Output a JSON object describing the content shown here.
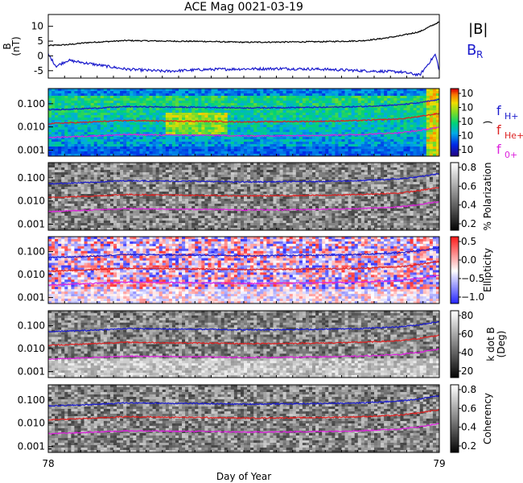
{
  "chart_data": {
    "title": "ACE Mag 0021-03-19",
    "xlabel": "Day of Year",
    "x_ticks": [
      "78",
      "79"
    ],
    "xlim": [
      78,
      79
    ],
    "panels": [
      {
        "type": "line",
        "ylabel_main": "B",
        "ylabel_unit": "(nT)",
        "y_ticks": [
          "10",
          "5",
          "0",
          "-5"
        ],
        "y_tick_values": [
          10,
          5,
          0,
          -5
        ],
        "ylim": [
          -7.5,
          14
        ],
        "series": [
          {
            "name": "|B|",
            "color": "#000000",
            "x": [
              78.0,
              78.05,
              78.1,
              78.2,
              78.3,
              78.4,
              78.5,
              78.6,
              78.7,
              78.8,
              78.85,
              78.9,
              78.95,
              79.0
            ],
            "y": [
              3.5,
              3.8,
              4.5,
              5.2,
              5.0,
              4.9,
              4.6,
              4.7,
              4.8,
              5.1,
              5.8,
              6.8,
              8.2,
              11.5
            ]
          },
          {
            "name": "Bʀ",
            "label_main": "B",
            "label_sub": "R",
            "color": "#1a1acc",
            "x": [
              78.0,
              78.02,
              78.05,
              78.1,
              78.2,
              78.3,
              78.4,
              78.5,
              78.6,
              78.7,
              78.8,
              78.9,
              78.95,
              78.99,
              79.0
            ],
            "y": [
              0.5,
              -3.5,
              -1.5,
              -2.5,
              -4.5,
              -5.2,
              -4.6,
              -4.4,
              -4.3,
              -4.5,
              -5.0,
              -5.4,
              -6.5,
              0.5,
              -5.0
            ]
          }
        ]
      },
      {
        "type": "heatmap",
        "colormap": "rainbow",
        "ylog": true,
        "y_ticks": [
          "0.100",
          "0.010",
          "0.001"
        ],
        "colorbar_ticks": [
          "10",
          "10",
          "10",
          "10",
          "10"
        ],
        "colorbar_label": ")"
      },
      {
        "type": "heatmap",
        "colormap": "gray",
        "ylog": true,
        "y_ticks": [
          "0.100",
          "0.010",
          "0.001"
        ],
        "colorbar_ticks": [
          "0.8",
          "0.6",
          "0.4",
          "0.2"
        ],
        "colorbar_label": "% Polarization"
      },
      {
        "type": "heatmap",
        "colormap": "bwr",
        "ylog": true,
        "y_ticks": [
          "0.100",
          "0.010",
          "0.001"
        ],
        "colorbar_ticks": [
          "0.5",
          "0.0",
          "−0.5",
          "−1.0"
        ],
        "colorbar_label": "Ellipticity"
      },
      {
        "type": "heatmap",
        "colormap": "gray",
        "ylog": true,
        "y_ticks": [
          "0.100",
          "0.010",
          "0.001"
        ],
        "colorbar_ticks": [
          "80",
          "60",
          "40",
          "20"
        ],
        "colorbar_label": "k dot B",
        "colorbar_label2": "(Deg)"
      },
      {
        "type": "heatmap",
        "colormap": "gray",
        "ylog": true,
        "y_ticks": [
          "0.100",
          "0.010",
          "0.001"
        ],
        "colorbar_ticks": [
          "0.8",
          "0.6",
          "0.4",
          "0.2"
        ],
        "colorbar_label": "Coherency"
      }
    ],
    "gyrofrequency_lines": [
      {
        "label_main": "f",
        "label_sub": "H+",
        "color": "#1a1acc",
        "x": [
          78.0,
          78.1,
          78.2,
          78.3,
          78.4,
          78.5,
          78.6,
          78.7,
          78.8,
          78.9,
          78.95,
          79.0
        ],
        "y": [
          0.055,
          0.062,
          0.075,
          0.072,
          0.07,
          0.066,
          0.068,
          0.07,
          0.075,
          0.09,
          0.11,
          0.15
        ]
      },
      {
        "label_main": "f",
        "label_sub": "He+",
        "color": "#dd2222",
        "x": [
          78.0,
          78.1,
          78.2,
          78.3,
          78.4,
          78.5,
          78.6,
          78.7,
          78.8,
          78.9,
          78.95,
          79.0
        ],
        "y": [
          0.014,
          0.016,
          0.019,
          0.018,
          0.0175,
          0.0165,
          0.017,
          0.0175,
          0.019,
          0.022,
          0.028,
          0.038
        ]
      },
      {
        "label_main": "f",
        "label_sub": "0+",
        "color": "#dd22dd",
        "x": [
          78.0,
          78.1,
          78.2,
          78.3,
          78.4,
          78.5,
          78.6,
          78.7,
          78.8,
          78.9,
          78.95,
          79.0
        ],
        "y": [
          0.0035,
          0.004,
          0.0047,
          0.0045,
          0.0044,
          0.0041,
          0.0042,
          0.0044,
          0.0047,
          0.0056,
          0.007,
          0.0095
        ]
      }
    ],
    "legend": {
      "top": [
        {
          "text": "|B|",
          "color": "#000000"
        },
        {
          "text": "B",
          "sub": "R",
          "color": "#1a1acc"
        }
      ]
    }
  }
}
